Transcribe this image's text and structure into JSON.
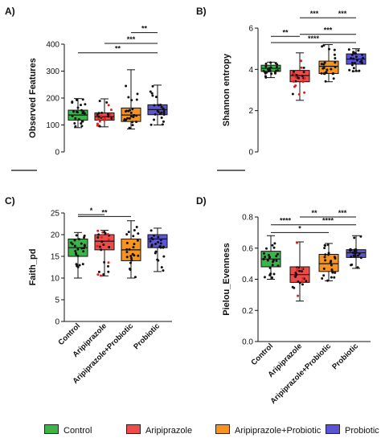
{
  "groups": [
    {
      "name": "Control",
      "color": "#3bb54a"
    },
    {
      "name": "Aripiprazole",
      "color": "#ee4b4b"
    },
    {
      "name": "Aripiprazole+Probiotic",
      "color": "#f7931e"
    },
    {
      "name": "Probiotic",
      "color": "#5b55d6"
    }
  ],
  "chart_data": [
    {
      "type": "box",
      "panel": "A)",
      "ylabel": "Observed Features",
      "ylim": [
        0,
        400
      ],
      "yticks": [
        "0",
        "100",
        "200",
        "300",
        "400"
      ],
      "show_x_labels": false,
      "series": [
        {
          "q1": 118,
          "median": 137,
          "q3": 155,
          "whisker_low": 90,
          "whisker_high": 198
        },
        {
          "q1": 118,
          "median": 131,
          "q3": 145,
          "whisker_low": 93,
          "whisker_high": 197
        },
        {
          "q1": 113,
          "median": 137,
          "q3": 163,
          "whisker_low": 85,
          "whisker_high": 305
        },
        {
          "q1": 138,
          "median": 157,
          "q3": 175,
          "whisker_low": 100,
          "whisker_high": 248
        }
      ],
      "brackets": [
        {
          "from": 3,
          "to": 4,
          "y": 443,
          "label": "**"
        },
        {
          "from": 2,
          "to": 4,
          "y": 403,
          "label": "***"
        },
        {
          "from": 1,
          "to": 4,
          "y": 368,
          "label": "**"
        }
      ]
    },
    {
      "type": "box",
      "panel": "B)",
      "ylabel": "Shannon entropy",
      "ylim": [
        0,
        6
      ],
      "yticks": [
        "0",
        "2",
        "4",
        "6"
      ],
      "show_x_labels": false,
      "series": [
        {
          "q1": 3.9,
          "median": 4.05,
          "q3": 4.2,
          "whisker_low": 3.6,
          "whisker_high": 4.35
        },
        {
          "q1": 3.4,
          "median": 3.7,
          "q3": 3.95,
          "whisker_low": 2.5,
          "whisker_high": 4.8
        },
        {
          "q1": 3.8,
          "median": 4.15,
          "q3": 4.4,
          "whisker_low": 3.4,
          "whisker_high": 5.2
        },
        {
          "q1": 4.25,
          "median": 4.5,
          "q3": 4.75,
          "whisker_low": 3.9,
          "whisker_high": 5.0
        }
      ],
      "brackets": [
        {
          "from": 1,
          "to": 2,
          "y": 5.6,
          "label": "**"
        },
        {
          "from": 2,
          "to": 3,
          "y": 6.5,
          "label": "***"
        },
        {
          "from": 3,
          "to": 4,
          "y": 6.5,
          "label": "***"
        },
        {
          "from": 2,
          "to": 4,
          "y": 5.7,
          "label": "***"
        },
        {
          "from": 1,
          "to": 4,
          "y": 5.3,
          "label": "****"
        }
      ]
    },
    {
      "type": "box",
      "panel": "C)",
      "ylabel": "Faith_pd",
      "ylim": [
        0,
        25
      ],
      "yticks": [
        "0",
        "5",
        "10",
        "15",
        "20",
        "25"
      ],
      "show_x_labels": true,
      "series": [
        {
          "q1": 15.0,
          "median": 17.0,
          "q3": 19.0,
          "whisker_low": 10.0,
          "whisker_high": 20.5
        },
        {
          "q1": 16.5,
          "median": 18.5,
          "q3": 20.0,
          "whisker_low": 10.5,
          "whisker_high": 21.0
        },
        {
          "q1": 14.0,
          "median": 16.5,
          "q3": 19.0,
          "whisker_low": 10.0,
          "whisker_high": 23.2
        },
        {
          "q1": 17.0,
          "median": 19.0,
          "q3": 20.0,
          "whisker_low": 11.5,
          "whisker_high": 21.5
        }
      ],
      "brackets": [
        {
          "from": 1,
          "to": 2,
          "y": 24.6,
          "label": "*"
        },
        {
          "from": 1,
          "to": 3,
          "y": 24.2,
          "label": "**"
        }
      ]
    },
    {
      "type": "box",
      "panel": "D)",
      "ylabel": "Pielou_Evenness",
      "ylim": [
        0,
        0.8
      ],
      "yticks": [
        "0.0",
        "0.2",
        "0.4",
        "0.6",
        "0.8"
      ],
      "show_x_labels": true,
      "series": [
        {
          "q1": 0.48,
          "median": 0.53,
          "q3": 0.58,
          "whisker_low": 0.4,
          "whisker_high": 0.68
        },
        {
          "q1": 0.38,
          "median": 0.43,
          "q3": 0.48,
          "whisker_low": 0.26,
          "whisker_high": 0.64
        },
        {
          "q1": 0.45,
          "median": 0.5,
          "q3": 0.56,
          "whisker_low": 0.39,
          "whisker_high": 0.63
        },
        {
          "q1": 0.54,
          "median": 0.57,
          "q3": 0.59,
          "whisker_low": 0.47,
          "whisker_high": 0.68
        }
      ],
      "brackets": [
        {
          "from": 1,
          "to": 2,
          "y": 0.75,
          "label": "****"
        },
        {
          "from": 1,
          "to": 3,
          "y": 0.7,
          "label": "*"
        },
        {
          "from": 2,
          "to": 3,
          "y": 0.8,
          "label": "**"
        },
        {
          "from": 3,
          "to": 4,
          "y": 0.8,
          "label": "***"
        },
        {
          "from": 2,
          "to": 4,
          "y": 0.75,
          "label": "****"
        }
      ]
    }
  ]
}
